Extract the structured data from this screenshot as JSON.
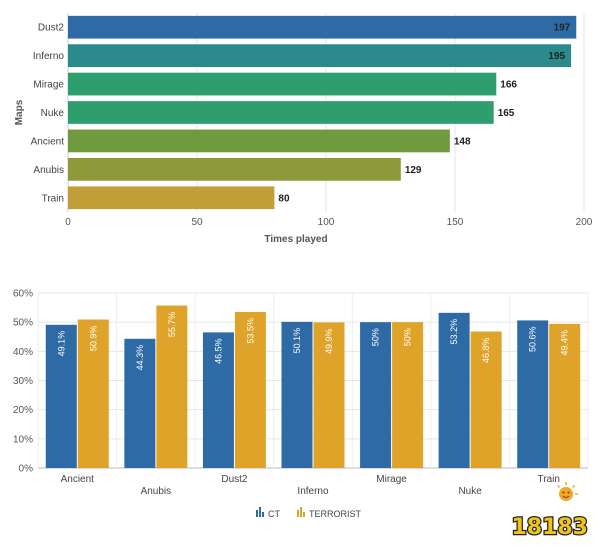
{
  "chart_data": [
    {
      "type": "bar",
      "orientation": "horizontal",
      "categories": [
        "Dust2",
        "Inferno",
        "Mirage",
        "Nuke",
        "Ancient",
        "Anubis",
        "Train"
      ],
      "values": [
        197,
        195,
        166,
        165,
        148,
        129,
        80
      ],
      "colors": [
        "#2e6aa6",
        "#2a8a8c",
        "#2f9e6f",
        "#2f9e6f",
        "#6f9a3e",
        "#8e9a3a",
        "#c29e38"
      ],
      "xlabel": "Times played",
      "ylabel": "Maps",
      "xlim": [
        0,
        200
      ],
      "xticks": [
        "0",
        "50",
        "100",
        "150",
        "200"
      ],
      "grid": true
    },
    {
      "type": "bar",
      "orientation": "vertical",
      "categories": [
        "Ancient",
        "Anubis",
        "Dust2",
        "Inferno",
        "Mirage",
        "Nuke",
        "Train"
      ],
      "series": [
        {
          "name": "CT",
          "color": "#2e6aa6",
          "values": [
            49.1,
            44.3,
            46.5,
            50.1,
            50,
            53.2,
            50.6
          ],
          "labels": [
            "49.1%",
            "44.3%",
            "46.5%",
            "50.1%",
            "50%",
            "53.2%",
            "50.6%"
          ]
        },
        {
          "name": "TERRORIST",
          "color": "#e0a32a",
          "values": [
            50.9,
            55.7,
            53.5,
            49.9,
            50,
            46.8,
            49.4
          ],
          "labels": [
            "50.9%",
            "55.7%",
            "53.5%",
            "49.9%",
            "50%",
            "46.8%",
            "49.4%"
          ]
        }
      ],
      "ylim": [
        0,
        60
      ],
      "yticks": [
        "0%",
        "10%",
        "20%",
        "30%",
        "40%",
        "50%",
        "60%"
      ],
      "legend": "bottom-center",
      "grid": true
    }
  ],
  "watermark": {
    "text": "18183",
    "icon": "smiling-sun-icon"
  }
}
